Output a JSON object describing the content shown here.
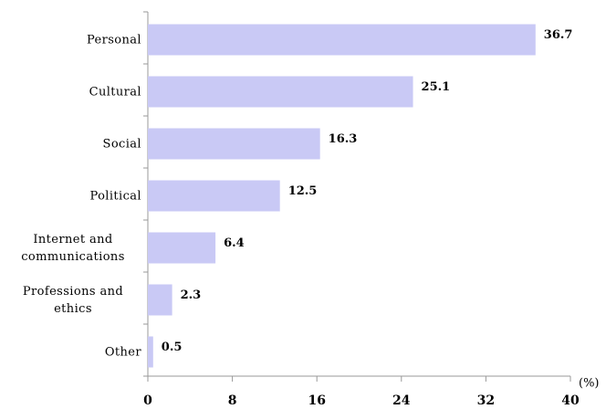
{
  "chart_data": {
    "type": "bar",
    "orientation": "horizontal",
    "categories": [
      "Personal",
      "Cultural",
      "Social",
      "Political",
      "Internet and communications",
      "Professions and ethics",
      "Other"
    ],
    "values": [
      36.7,
      25.1,
      16.3,
      12.5,
      6.4,
      2.3,
      0.5
    ],
    "color": "#c9c9f5",
    "xlim": [
      0,
      40
    ],
    "xticks": [
      0,
      8,
      16,
      24,
      32,
      40
    ],
    "xlabel": "(%)"
  }
}
